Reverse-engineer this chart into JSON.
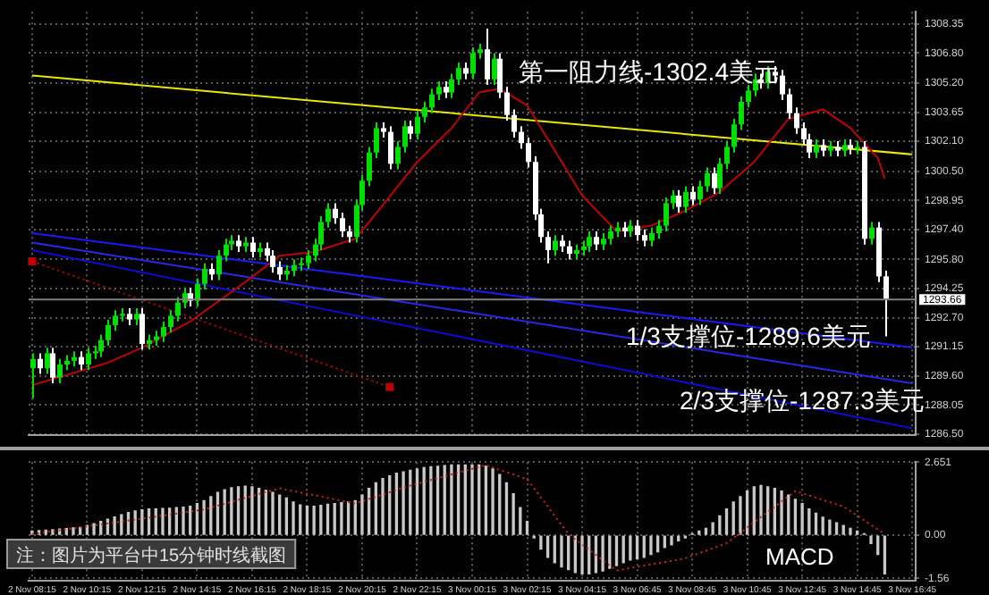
{
  "chart_data": [
    {
      "type": "candlestick",
      "categories": [
        "2 Nov 08:15",
        null,
        null,
        null,
        null,
        null,
        null,
        null,
        "2 Nov 10:15",
        null,
        null,
        null,
        null,
        null,
        null,
        null,
        "2 Nov 12:15",
        null,
        null,
        null,
        null,
        null,
        null,
        null,
        "2 Nov 14:15",
        null,
        null,
        null,
        null,
        null,
        null,
        null,
        "2 Nov 16:15",
        null,
        null,
        null,
        null,
        null,
        null,
        null,
        "2 Nov 18:15",
        null,
        null,
        null,
        null,
        null,
        null,
        null,
        "2 Nov 20:15",
        null,
        null,
        null,
        null,
        null,
        null,
        null,
        "2 Nov 22:15",
        null,
        null,
        null,
        null,
        null,
        null,
        null,
        "3 Nov 00:15",
        null,
        null,
        null,
        null,
        null,
        null,
        null,
        "3 Nov 02:15",
        null,
        null,
        null,
        null,
        null,
        null,
        null,
        "3 Nov 04:15",
        null,
        null,
        null,
        null,
        null,
        null,
        null,
        "3 Nov 06:45",
        null,
        null,
        null,
        null,
        null,
        null,
        null,
        "3 Nov 08:45",
        null,
        null,
        null,
        null,
        null,
        null,
        null,
        "3 Nov 10:45",
        null,
        null,
        null,
        null,
        null,
        null,
        null,
        "3 Nov 12:45",
        null,
        null,
        null,
        null,
        null,
        null,
        null,
        "3 Nov 14:45",
        null,
        null,
        null,
        null,
        null,
        null,
        null,
        "3 Nov 16:45"
      ],
      "ohlc": [
        [
          1290.0,
          1290.8,
          1288.4,
          1290.5
        ],
        [
          1290.5,
          1290.8,
          1289.7,
          1290.0
        ],
        [
          1290.0,
          1291.1,
          1289.7,
          1290.8
        ],
        [
          1290.8,
          1291.1,
          1289.2,
          1289.5
        ],
        [
          1289.5,
          1290.5,
          1289.2,
          1290.2
        ],
        [
          1290.2,
          1290.7,
          1289.9,
          1290.4
        ],
        [
          1290.4,
          1290.9,
          1290.1,
          1290.6
        ],
        [
          1290.6,
          1290.9,
          1289.9,
          1290.2
        ],
        [
          1290.2,
          1291.1,
          1289.9,
          1290.8
        ],
        [
          1290.8,
          1291.2,
          1290.5,
          1290.9
        ],
        [
          1290.9,
          1291.8,
          1290.6,
          1291.5
        ],
        [
          1291.5,
          1292.6,
          1291.2,
          1292.3
        ],
        [
          1292.3,
          1293.1,
          1292.0,
          1292.8
        ],
        [
          1292.8,
          1293.2,
          1292.5,
          1292.9
        ],
        [
          1292.9,
          1293.2,
          1292.3,
          1292.6
        ],
        [
          1292.6,
          1293.2,
          1292.3,
          1292.9
        ],
        [
          1292.9,
          1293.2,
          1291.0,
          1291.3
        ],
        [
          1291.3,
          1291.8,
          1291.0,
          1291.5
        ],
        [
          1291.5,
          1292.0,
          1291.2,
          1291.7
        ],
        [
          1291.7,
          1292.5,
          1291.4,
          1292.2
        ],
        [
          1292.2,
          1293.1,
          1291.9,
          1292.8
        ],
        [
          1292.8,
          1293.8,
          1292.5,
          1293.5
        ],
        [
          1293.5,
          1294.3,
          1293.2,
          1294.0
        ],
        [
          1294.0,
          1294.3,
          1293.3,
          1293.6
        ],
        [
          1293.6,
          1294.8,
          1293.3,
          1294.5
        ],
        [
          1294.5,
          1295.6,
          1294.2,
          1295.3
        ],
        [
          1295.3,
          1295.6,
          1294.7,
          1295.0
        ],
        [
          1295.0,
          1296.3,
          1294.7,
          1296.0
        ],
        [
          1296.0,
          1296.9,
          1295.7,
          1296.6
        ],
        [
          1296.6,
          1297.1,
          1296.3,
          1296.8
        ],
        [
          1296.8,
          1297.1,
          1296.2,
          1296.5
        ],
        [
          1296.5,
          1297.0,
          1296.2,
          1296.7
        ],
        [
          1296.7,
          1297.0,
          1295.9,
          1296.2
        ],
        [
          1296.2,
          1296.7,
          1295.9,
          1296.4
        ],
        [
          1296.4,
          1296.7,
          1295.7,
          1296.0
        ],
        [
          1296.0,
          1296.3,
          1295.1,
          1295.4
        ],
        [
          1295.4,
          1295.7,
          1294.7,
          1295.0
        ],
        [
          1295.0,
          1295.5,
          1294.7,
          1295.2
        ],
        [
          1295.2,
          1295.8,
          1294.9,
          1295.5
        ],
        [
          1295.5,
          1295.9,
          1295.2,
          1295.6
        ],
        [
          1295.6,
          1296.3,
          1295.3,
          1296.0
        ],
        [
          1296.0,
          1296.9,
          1295.7,
          1296.6
        ],
        [
          1296.6,
          1298.1,
          1296.3,
          1297.8
        ],
        [
          1297.8,
          1298.8,
          1297.5,
          1298.5
        ],
        [
          1298.5,
          1298.8,
          1297.7,
          1298.0
        ],
        [
          1298.0,
          1298.3,
          1297.0,
          1297.3
        ],
        [
          1297.3,
          1297.6,
          1296.7,
          1297.0
        ],
        [
          1297.0,
          1299.0,
          1296.7,
          1298.7
        ],
        [
          1298.7,
          1300.3,
          1298.4,
          1300.0
        ],
        [
          1300.0,
          1301.8,
          1299.7,
          1301.5
        ],
        [
          1301.5,
          1303.1,
          1301.2,
          1302.8
        ],
        [
          1302.8,
          1303.1,
          1302.3,
          1302.6
        ],
        [
          1302.6,
          1302.9,
          1300.6,
          1300.9
        ],
        [
          1300.9,
          1302.1,
          1300.6,
          1301.8
        ],
        [
          1301.8,
          1303.2,
          1301.5,
          1302.9
        ],
        [
          1302.9,
          1303.2,
          1302.2,
          1302.5
        ],
        [
          1302.5,
          1303.7,
          1302.2,
          1303.4
        ],
        [
          1303.4,
          1304.2,
          1303.1,
          1303.9
        ],
        [
          1303.9,
          1304.9,
          1303.6,
          1304.6
        ],
        [
          1304.6,
          1305.3,
          1304.3,
          1305.0
        ],
        [
          1305.0,
          1305.3,
          1304.4,
          1304.7
        ],
        [
          1304.7,
          1305.7,
          1304.4,
          1305.4
        ],
        [
          1305.4,
          1306.3,
          1305.1,
          1306.0
        ],
        [
          1306.0,
          1306.3,
          1305.4,
          1305.7
        ],
        [
          1305.7,
          1307.1,
          1305.4,
          1306.8
        ],
        [
          1306.8,
          1307.3,
          1306.5,
          1307.0
        ],
        [
          1307.0,
          1308.1,
          1305.1,
          1305.4
        ],
        [
          1305.4,
          1306.8,
          1305.1,
          1306.5
        ],
        [
          1306.5,
          1306.8,
          1304.4,
          1304.7
        ],
        [
          1304.7,
          1305.0,
          1303.2,
          1303.5
        ],
        [
          1303.5,
          1303.8,
          1302.3,
          1302.6
        ],
        [
          1302.6,
          1302.9,
          1301.7,
          1302.0
        ],
        [
          1302.0,
          1302.3,
          1300.7,
          1301.0
        ],
        [
          1301.0,
          1301.3,
          1297.9,
          1298.2
        ],
        [
          1298.2,
          1298.5,
          1296.7,
          1297.0
        ],
        [
          1297.0,
          1297.3,
          1295.6,
          1296.3
        ],
        [
          1296.3,
          1297.1,
          1296.0,
          1296.8
        ],
        [
          1296.8,
          1297.1,
          1296.2,
          1296.5
        ],
        [
          1296.5,
          1296.8,
          1295.8,
          1296.1
        ],
        [
          1296.1,
          1296.6,
          1295.8,
          1296.3
        ],
        [
          1296.3,
          1296.8,
          1296.0,
          1296.5
        ],
        [
          1296.5,
          1297.3,
          1296.2,
          1297.0
        ],
        [
          1297.0,
          1297.3,
          1296.3,
          1296.6
        ],
        [
          1296.6,
          1297.2,
          1296.3,
          1296.9
        ],
        [
          1296.9,
          1297.6,
          1296.6,
          1297.3
        ],
        [
          1297.3,
          1297.8,
          1297.0,
          1297.5
        ],
        [
          1297.5,
          1297.8,
          1297.0,
          1297.3
        ],
        [
          1297.3,
          1297.9,
          1297.0,
          1297.6
        ],
        [
          1297.6,
          1297.9,
          1296.8,
          1297.1
        ],
        [
          1297.1,
          1297.4,
          1296.5,
          1296.8
        ],
        [
          1296.8,
          1297.5,
          1296.5,
          1297.2
        ],
        [
          1297.2,
          1297.9,
          1296.9,
          1297.6
        ],
        [
          1297.6,
          1299.1,
          1297.3,
          1298.8
        ],
        [
          1298.8,
          1299.5,
          1298.5,
          1299.2
        ],
        [
          1299.2,
          1299.5,
          1298.3,
          1298.6
        ],
        [
          1298.6,
          1299.7,
          1298.3,
          1299.4
        ],
        [
          1299.4,
          1299.7,
          1298.7,
          1299.0
        ],
        [
          1299.0,
          1300.0,
          1298.7,
          1299.7
        ],
        [
          1299.7,
          1300.7,
          1299.4,
          1300.4
        ],
        [
          1300.4,
          1300.7,
          1299.3,
          1299.6
        ],
        [
          1299.6,
          1301.2,
          1299.3,
          1300.9
        ],
        [
          1300.9,
          1302.1,
          1300.6,
          1301.8
        ],
        [
          1301.8,
          1303.3,
          1301.5,
          1303.0
        ],
        [
          1303.0,
          1304.5,
          1302.7,
          1304.2
        ],
        [
          1304.2,
          1305.1,
          1303.9,
          1304.8
        ],
        [
          1304.8,
          1305.7,
          1304.5,
          1305.4
        ],
        [
          1305.4,
          1305.7,
          1304.9,
          1305.2
        ],
        [
          1305.2,
          1306.1,
          1304.9,
          1305.8
        ],
        [
          1305.8,
          1306.1,
          1305.3,
          1305.6
        ],
        [
          1305.6,
          1305.9,
          1304.3,
          1304.6
        ],
        [
          1304.6,
          1304.9,
          1303.3,
          1303.6
        ],
        [
          1303.6,
          1303.9,
          1302.5,
          1302.8
        ],
        [
          1302.8,
          1303.1,
          1301.9,
          1302.2
        ],
        [
          1302.2,
          1302.5,
          1301.2,
          1301.5
        ],
        [
          1301.5,
          1302.2,
          1301.2,
          1301.9
        ],
        [
          1301.9,
          1302.2,
          1301.3,
          1301.6
        ],
        [
          1301.6,
          1302.1,
          1301.3,
          1301.8
        ],
        [
          1301.8,
          1302.1,
          1301.3,
          1301.6
        ],
        [
          1301.6,
          1302.2,
          1301.3,
          1301.9
        ],
        [
          1301.9,
          1302.2,
          1301.4,
          1301.7
        ],
        [
          1301.7,
          1302.1,
          1301.4,
          1301.8
        ],
        [
          1301.8,
          1302.1,
          1296.6,
          1296.9
        ],
        [
          1296.9,
          1297.8,
          1296.6,
          1297.5
        ],
        [
          1297.5,
          1297.8,
          1294.6,
          1294.9
        ],
        [
          1294.9,
          1295.2,
          1291.7,
          1293.7
        ],
        null,
        null,
        null,
        null
      ],
      "colors": [
        "#00e000",
        "#ffffff",
        "#00e000",
        "#ffffff",
        "#00e000",
        "#00e000",
        "#00e000",
        "#ffffff",
        "#00e000",
        "#00e000",
        "#00e000",
        "#00e000",
        "#00e000",
        "#00e000",
        "#ffffff",
        "#00e000",
        "#ffffff",
        "#00e000",
        "#00e000",
        "#00e000",
        "#00e000",
        "#00e000",
        "#00e000",
        "#ffffff",
        "#00e000",
        "#00e000",
        "#ffffff",
        "#00e000",
        "#00e000",
        "#00e000",
        "#ffffff",
        "#00e000",
        "#ffffff",
        "#00e000",
        "#ffffff",
        "#ffffff",
        "#ffffff",
        "#00e000",
        "#00e000",
        "#00e000",
        "#00e000",
        "#00e000",
        "#00e000",
        "#00e000",
        "#ffffff",
        "#ffffff",
        "#ffffff",
        "#00e000",
        "#00e000",
        "#00e000",
        "#00e000",
        "#ffffff",
        "#ffffff",
        "#00e000",
        "#00e000",
        "#ffffff",
        "#00e000",
        "#00e000",
        "#00e000",
        "#00e000",
        "#ffffff",
        "#00e000",
        "#00e000",
        "#ffffff",
        "#00e000",
        "#00e000",
        "#ffffff",
        "#00e000",
        "#ffffff",
        "#ffffff",
        "#ffffff",
        "#ffffff",
        "#ffffff",
        "#ffffff",
        "#ffffff",
        "#ffffff",
        "#00e000",
        "#ffffff",
        "#ffffff",
        "#00e000",
        "#00e000",
        "#00e000",
        "#ffffff",
        "#00e000",
        "#00e000",
        "#00e000",
        "#ffffff",
        "#00e000",
        "#ffffff",
        "#ffffff",
        "#00e000",
        "#00e000",
        "#00e000",
        "#00e000",
        "#ffffff",
        "#00e000",
        "#ffffff",
        "#00e000",
        "#00e000",
        "#ffffff",
        "#00e000",
        "#00e000",
        "#00e000",
        "#00e000",
        "#00e000",
        "#00e000",
        "#ffffff",
        "#00e000",
        "#ffffff",
        "#ffffff",
        "#ffffff",
        "#ffffff",
        "#ffffff",
        "#ffffff",
        "#00e000",
        "#ffffff",
        "#00e000",
        "#ffffff",
        "#00e000",
        "#ffffff",
        "#00e000",
        "#ffffff",
        "#00e000",
        "#ffffff",
        "#ffffff",
        null,
        null,
        null,
        null
      ],
      "series": [
        {
          "type": "line",
          "color": "#c00000",
          "values": [
            1289.1,
            null,
            null,
            null,
            null,
            null,
            null,
            null,
            null,
            null,
            null,
            1290.3,
            null,
            null,
            null,
            null,
            1291.1,
            null,
            null,
            null,
            null,
            null,
            null,
            1292.5,
            null,
            null,
            null,
            null,
            null,
            null,
            null,
            1294.6,
            null,
            null,
            null,
            null,
            1296.0,
            null,
            null,
            null,
            null,
            1296.2,
            null,
            null,
            null,
            null,
            null,
            1296.9,
            null,
            null,
            null,
            1298.7,
            null,
            null,
            null,
            null,
            1301.0,
            null,
            null,
            null,
            null,
            1302.8,
            null,
            null,
            null,
            1304.7,
            null,
            null,
            1304.9,
            null,
            null,
            null,
            1304.0,
            null,
            null,
            1302.2,
            null,
            null,
            null,
            null,
            1299.2,
            null,
            null,
            null,
            null,
            1297.3,
            null,
            null,
            null,
            null,
            1297.6,
            null,
            null,
            null,
            null,
            1298.4,
            null,
            null,
            null,
            null,
            1299.4,
            null,
            null,
            null,
            null,
            1301.0,
            null,
            null,
            null,
            null,
            1303.3,
            null,
            null,
            null,
            null,
            1303.8,
            null,
            null,
            null,
            1302.8,
            null,
            null,
            null,
            1301.2,
            1300.1,
            null,
            null,
            null,
            null
          ]
        },
        {
          "type": "line",
          "color": "#e8e800",
          "x": [
            "2 Nov 08:15",
            "3 Nov 16:45"
          ],
          "values": [
            1305.6,
            1301.4
          ]
        },
        {
          "type": "line",
          "color": "#1a1aff",
          "x": [
            "2 Nov 08:15",
            "3 Nov 16:45"
          ],
          "values": [
            1297.2,
            1291.1
          ]
        },
        {
          "type": "line",
          "color": "#2828e8",
          "x": [
            "2 Nov 08:15",
            "3 Nov 16:45"
          ],
          "values": [
            1296.7,
            1289.2
          ]
        },
        {
          "type": "line",
          "color": "#0c0cd0",
          "x": [
            "2 Nov 08:15",
            "3 Nov 16:45"
          ],
          "values": [
            1296.3,
            1286.8
          ]
        },
        {
          "type": "line",
          "color": "#c00000",
          "line_style": "dotted",
          "marker": "square",
          "values": [
            1295.7,
            null,
            null,
            null,
            null,
            null,
            null,
            null,
            null,
            null,
            null,
            null,
            null,
            null,
            null,
            null,
            null,
            null,
            null,
            null,
            null,
            null,
            null,
            null,
            null,
            null,
            null,
            null,
            null,
            null,
            null,
            null,
            null,
            null,
            null,
            null,
            null,
            null,
            null,
            null,
            null,
            null,
            null,
            null,
            null,
            null,
            null,
            null,
            null,
            null,
            null,
            null,
            1289.0,
            null,
            null,
            null,
            null,
            null,
            null,
            null,
            null,
            null,
            null,
            null,
            null,
            null,
            null,
            null,
            null,
            null,
            null,
            null,
            null,
            null,
            null,
            null,
            null,
            null,
            null,
            null,
            null,
            null,
            null,
            null,
            null,
            null,
            null,
            null,
            null,
            null,
            null,
            null,
            null,
            null,
            null,
            null,
            null,
            null,
            null,
            null,
            null,
            null,
            null,
            null,
            null,
            null,
            null,
            null,
            null,
            null,
            null,
            null,
            null,
            null,
            null,
            null,
            null,
            null,
            null,
            null,
            null,
            null,
            null,
            null,
            null,
            null,
            null,
            null,
            null
          ]
        }
      ],
      "ylim": [
        1286.45,
        1309.0
      ],
      "yticks": [
        {
          "value": 1286.5,
          "label": "1286.50"
        },
        {
          "value": 1288.05,
          "label": "1288.05"
        },
        {
          "value": 1289.6,
          "label": "1289.60"
        },
        {
          "value": 1291.15,
          "label": "1291.15"
        },
        {
          "value": 1292.7,
          "label": "1292.70"
        },
        {
          "value": 1294.25,
          "label": "1294.25"
        },
        {
          "value": 1295.8,
          "label": "1295.80"
        },
        {
          "value": 1297.4,
          "label": "1297.40"
        },
        {
          "value": 1298.95,
          "label": "1298.95"
        },
        {
          "value": 1300.5,
          "label": "1300.50"
        },
        {
          "value": 1302.1,
          "label": "1302.10"
        },
        {
          "value": 1303.65,
          "label": "1303.65"
        },
        {
          "value": 1305.2,
          "label": "1305.20"
        },
        {
          "value": 1306.8,
          "label": "1306.80"
        },
        {
          "value": 1308.35,
          "label": "1308.35"
        }
      ],
      "ref_lines": [
        {
          "axis": "y",
          "value": 1293.66,
          "label": "1293.66",
          "color": "#808080"
        }
      ],
      "annotations": [
        "第一阻力线-1302.4美元",
        "1/3支撑位-1289.6美元",
        "2/3支撑位-1287.3美元"
      ],
      "grid": true,
      "legend": false,
      "tick_labels": "y"
    },
    {
      "type": "bar",
      "categories": [
        "2 Nov 08:15",
        null,
        null,
        null,
        null,
        null,
        null,
        null,
        "2 Nov 10:15",
        null,
        null,
        null,
        null,
        null,
        null,
        null,
        "2 Nov 12:15",
        null,
        null,
        null,
        null,
        null,
        null,
        null,
        "2 Nov 14:15",
        null,
        null,
        null,
        null,
        null,
        null,
        null,
        "2 Nov 16:15",
        null,
        null,
        null,
        null,
        null,
        null,
        null,
        "2 Nov 18:15",
        null,
        null,
        null,
        null,
        null,
        null,
        null,
        "2 Nov 20:15",
        null,
        null,
        null,
        null,
        null,
        null,
        null,
        "2 Nov 22:15",
        null,
        null,
        null,
        null,
        null,
        null,
        null,
        "3 Nov 00:15",
        null,
        null,
        null,
        null,
        null,
        null,
        null,
        "3 Nov 02:15",
        null,
        null,
        null,
        null,
        null,
        null,
        null,
        "3 Nov 04:15",
        null,
        null,
        null,
        null,
        null,
        null,
        null,
        "3 Nov 06:45",
        null,
        null,
        null,
        null,
        null,
        null,
        null,
        "3 Nov 08:45",
        null,
        null,
        null,
        null,
        null,
        null,
        null,
        "3 Nov 10:45",
        null,
        null,
        null,
        null,
        null,
        null,
        null,
        "3 Nov 12:45",
        null,
        null,
        null,
        null,
        null,
        null,
        null,
        "3 Nov 14:45",
        null,
        null,
        null,
        null,
        null,
        null,
        null,
        "3 Nov 16:45"
      ],
      "series": [
        {
          "color": "#c8c8c8",
          "values": [
            0.15,
            0.17,
            0.18,
            0.2,
            0.22,
            0.24,
            0.26,
            0.28,
            0.35,
            0.42,
            0.5,
            0.58,
            0.66,
            0.74,
            0.82,
            0.88,
            0.92,
            0.95,
            0.95,
            0.97,
            0.98,
            1.0,
            1.02,
            1.05,
            1.15,
            1.25,
            1.4,
            1.55,
            1.65,
            1.72,
            1.75,
            1.78,
            1.75,
            1.7,
            1.62,
            1.55,
            1.45,
            1.35,
            1.2,
            1.1,
            1.05,
            1.05,
            1.08,
            1.12,
            1.15,
            1.18,
            1.2,
            1.25,
            1.45,
            1.7,
            1.9,
            2.05,
            2.15,
            2.25,
            2.3,
            2.35,
            2.4,
            2.45,
            2.48,
            2.5,
            2.52,
            2.55,
            2.55,
            2.55,
            2.55,
            2.55,
            2.5,
            2.4,
            2.2,
            1.9,
            1.5,
            1.0,
            0.5,
            -0.1,
            -0.5,
            -0.8,
            -1.0,
            -1.15,
            -1.25,
            -1.35,
            -1.4,
            -1.4,
            -1.35,
            -1.3,
            -1.2,
            -1.1,
            -1.0,
            -0.9,
            -0.85,
            -0.8,
            -0.7,
            -0.6,
            -0.45,
            -0.35,
            -0.2,
            -0.1,
            0.05,
            0.15,
            0.25,
            0.45,
            0.7,
            0.95,
            1.2,
            1.4,
            1.6,
            1.75,
            1.8,
            1.75,
            1.7,
            1.6,
            1.45,
            1.3,
            1.15,
            0.95,
            0.8,
            0.65,
            0.55,
            0.45,
            0.35,
            0.25,
            0.15,
            0.05,
            -0.3,
            -0.7,
            -1.4,
            null,
            null,
            null,
            null
          ]
        },
        {
          "type": "line",
          "color": "#d02020",
          "line_style": "dotted",
          "values": [
            0.04,
            null,
            null,
            null,
            null,
            null,
            null,
            null,
            null,
            null,
            null,
            null,
            null,
            null,
            null,
            null,
            0.6,
            null,
            null,
            null,
            null,
            null,
            null,
            null,
            null,
            0.93,
            null,
            null,
            null,
            null,
            null,
            null,
            null,
            null,
            null,
            null,
            1.7,
            null,
            null,
            null,
            null,
            null,
            null,
            null,
            null,
            null,
            null,
            1.15,
            null,
            null,
            null,
            null,
            null,
            null,
            null,
            1.8,
            null,
            null,
            null,
            null,
            null,
            null,
            null,
            null,
            null,
            null,
            2.54,
            null,
            null,
            null,
            null,
            null,
            2.03,
            null,
            null,
            null,
            null,
            null,
            0.04,
            null,
            null,
            null,
            null,
            null,
            null,
            -1.28,
            null,
            null,
            null,
            null,
            null,
            null,
            null,
            null,
            null,
            -0.84,
            null,
            null,
            null,
            null,
            null,
            -0.29,
            null,
            null,
            null,
            null,
            null,
            null,
            null,
            null,
            null,
            1.6,
            null,
            null,
            null,
            null,
            null,
            null,
            1.04,
            null,
            null,
            null,
            null,
            null,
            0.04,
            null,
            null,
            null,
            null
          ]
        }
      ],
      "ylim": [
        -1.65,
        2.651
      ],
      "yticks": [
        {
          "value": -1.56,
          "label": "-1.56"
        },
        {
          "value": 0,
          "label": "0.00"
        },
        2.651
      ],
      "annotations": [
        "MACD",
        "注：图片为平台中15分钟时线截图"
      ],
      "grid": true,
      "legend": false
    }
  ]
}
